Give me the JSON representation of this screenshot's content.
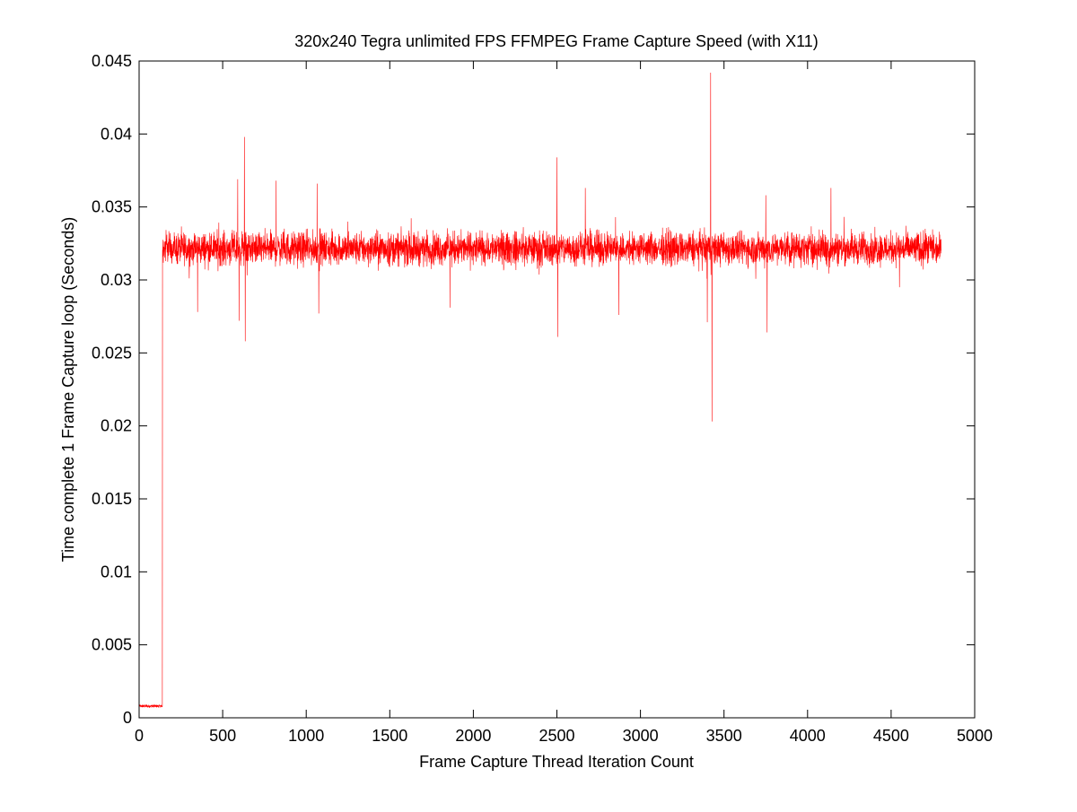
{
  "chart_data": {
    "type": "line",
    "title": "320x240 Tegra unlimited FPS FFMPEG Frame Capture Speed (with X11)",
    "xlabel": "Frame Capture Thread Iteration Count",
    "ylabel": "Time complete 1 Frame Capture loop (Seconds)",
    "xlim": [
      0,
      5000
    ],
    "ylim": [
      0,
      0.045
    ],
    "xticks": [
      0,
      500,
      1000,
      1500,
      2000,
      2500,
      3000,
      3500,
      4000,
      4500,
      5000
    ],
    "xtick_labels": [
      "0",
      "500",
      "1000",
      "1500",
      "2000",
      "2500",
      "3000",
      "3500",
      "4000",
      "4500",
      "5000"
    ],
    "yticks": [
      0,
      0.005,
      0.01,
      0.015,
      0.02,
      0.025,
      0.03,
      0.035,
      0.04,
      0.045
    ],
    "ytick_labels": [
      "0",
      "0.005",
      "0.01",
      "0.015",
      "0.02",
      "0.025",
      "0.03",
      "0.035",
      "0.04",
      "0.045"
    ],
    "grid": false,
    "legend": null,
    "series_color": "#ff0000",
    "series": [
      {
        "x_range": [
          1,
          4800
        ],
        "description_points": {
          "warmup": {
            "x_end": 140,
            "y": 0.0008
          },
          "steady_band": {
            "x_start": 140,
            "x_end": 4800,
            "y_low": 0.0305,
            "y_high": 0.0338,
            "y_center": 0.032
          }
        },
        "spikes": [
          {
            "x": 590,
            "y": 0.0369
          },
          {
            "x": 598,
            "y": 0.0272
          },
          {
            "x": 630,
            "y": 0.0398
          },
          {
            "x": 635,
            "y": 0.0258
          },
          {
            "x": 350,
            "y": 0.0278
          },
          {
            "x": 820,
            "y": 0.0368
          },
          {
            "x": 1065,
            "y": 0.0366
          },
          {
            "x": 1075,
            "y": 0.0277
          },
          {
            "x": 1860,
            "y": 0.0281
          },
          {
            "x": 2500,
            "y": 0.0384
          },
          {
            "x": 2505,
            "y": 0.0261
          },
          {
            "x": 2670,
            "y": 0.0363
          },
          {
            "x": 2870,
            "y": 0.0276
          },
          {
            "x": 3420,
            "y": 0.0442
          },
          {
            "x": 3428,
            "y": 0.0203
          },
          {
            "x": 3400,
            "y": 0.0271
          },
          {
            "x": 3750,
            "y": 0.0358
          },
          {
            "x": 3758,
            "y": 0.0264
          },
          {
            "x": 4140,
            "y": 0.0363
          },
          {
            "x": 4550,
            "y": 0.0295
          }
        ]
      }
    ]
  }
}
